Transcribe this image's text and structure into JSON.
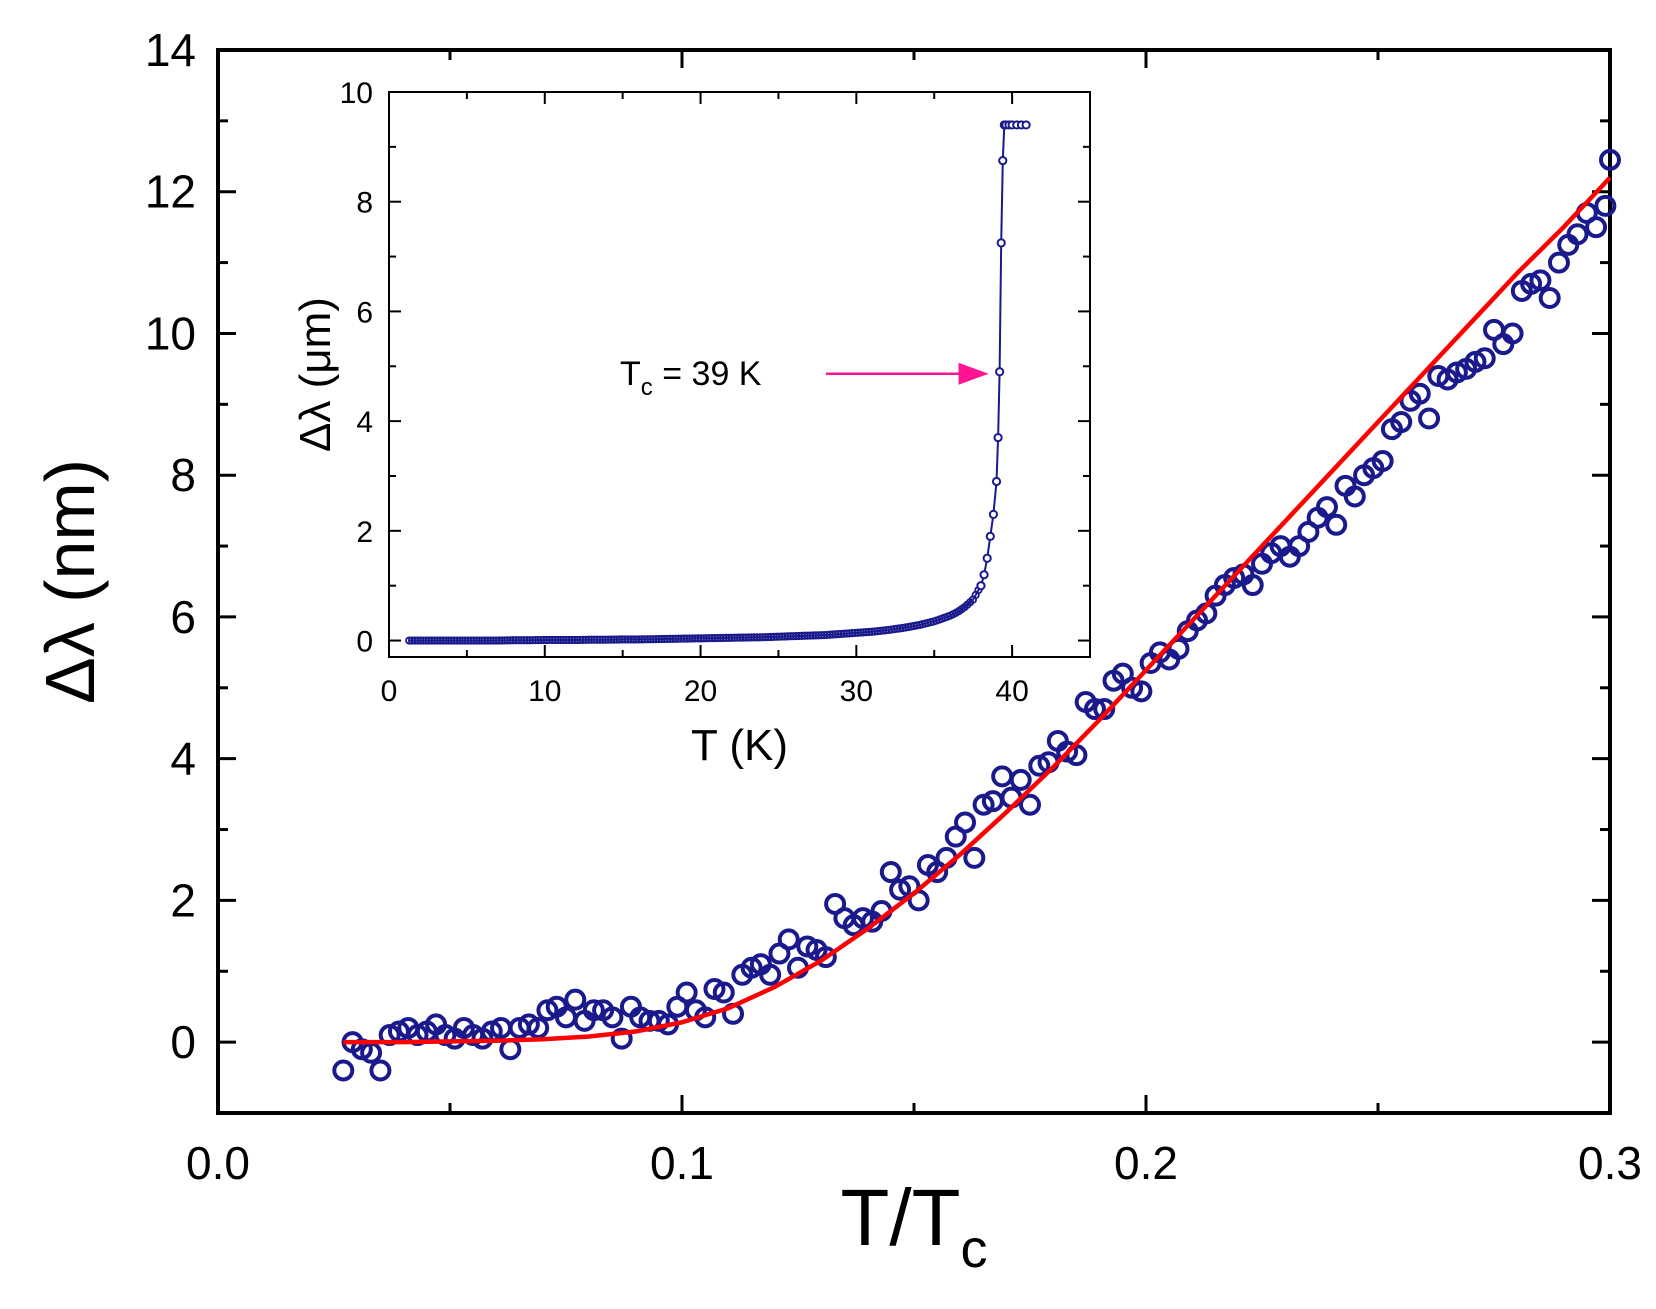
{
  "chart_data": [
    {
      "id": "main",
      "type": "scatter",
      "title": "",
      "xlabel": "T/T",
      "xlabel_sub": "c",
      "ylabel": "Δλ (nm)",
      "xlim": [
        0.0,
        0.3
      ],
      "ylim": [
        -1,
        14
      ],
      "xticks": [
        0.0,
        0.1,
        0.2,
        0.3
      ],
      "xtick_labels": [
        "0.0",
        "0.1",
        "0.2",
        "0.3"
      ],
      "xminor": [
        0.05,
        0.15,
        0.25
      ],
      "yticks": [
        0,
        2,
        4,
        6,
        8,
        10,
        12,
        14
      ],
      "ytick_labels": [
        "0",
        "2",
        "4",
        "6",
        "8",
        "10",
        "12",
        "14"
      ],
      "yminor": [
        1,
        3,
        5,
        7,
        9,
        11,
        13
      ],
      "series": [
        {
          "name": "data",
          "marker": "open-circle",
          "color": "#1a1a8c",
          "x": [
            0.027,
            0.029,
            0.031,
            0.033,
            0.035,
            0.037,
            0.039,
            0.041,
            0.043,
            0.045,
            0.047,
            0.049,
            0.051,
            0.053,
            0.055,
            0.057,
            0.059,
            0.061,
            0.063,
            0.065,
            0.067,
            0.069,
            0.071,
            0.073,
            0.075,
            0.077,
            0.079,
            0.081,
            0.083,
            0.085,
            0.087,
            0.089,
            0.091,
            0.093,
            0.095,
            0.097,
            0.099,
            0.101,
            0.103,
            0.105,
            0.107,
            0.109,
            0.111,
            0.113,
            0.115,
            0.117,
            0.119,
            0.121,
            0.123,
            0.125,
            0.127,
            0.129,
            0.131,
            0.133,
            0.135,
            0.137,
            0.139,
            0.141,
            0.143,
            0.145,
            0.147,
            0.149,
            0.151,
            0.153,
            0.155,
            0.157,
            0.159,
            0.161,
            0.163,
            0.165,
            0.167,
            0.169,
            0.171,
            0.173,
            0.175,
            0.177,
            0.179,
            0.181,
            0.183,
            0.185,
            0.187,
            0.189,
            0.191,
            0.193,
            0.195,
            0.197,
            0.199,
            0.201,
            0.203,
            0.205,
            0.207,
            0.209,
            0.211,
            0.213,
            0.215,
            0.217,
            0.219,
            0.221,
            0.223,
            0.225,
            0.227,
            0.229,
            0.231,
            0.233,
            0.235,
            0.237,
            0.239,
            0.241,
            0.243,
            0.245,
            0.247,
            0.249,
            0.251,
            0.253,
            0.255,
            0.257,
            0.259,
            0.261,
            0.263,
            0.265,
            0.267,
            0.269,
            0.271,
            0.273,
            0.275,
            0.277,
            0.279,
            0.281,
            0.283,
            0.285,
            0.287,
            0.289,
            0.291,
            0.293,
            0.295,
            0.297,
            0.299,
            0.3
          ],
          "y": [
            -0.4,
            0.0,
            -0.1,
            -0.15,
            -0.4,
            0.1,
            0.15,
            0.2,
            0.1,
            0.15,
            0.25,
            0.1,
            0.05,
            0.2,
            0.1,
            0.05,
            0.15,
            0.2,
            -0.1,
            0.2,
            0.25,
            0.2,
            0.45,
            0.5,
            0.35,
            0.6,
            0.3,
            0.45,
            0.45,
            0.35,
            0.05,
            0.5,
            0.35,
            0.3,
            0.3,
            0.25,
            0.5,
            0.7,
            0.45,
            0.35,
            0.75,
            0.7,
            0.4,
            0.95,
            1.05,
            1.1,
            0.95,
            1.25,
            1.45,
            1.05,
            1.35,
            1.3,
            1.2,
            1.95,
            1.75,
            1.65,
            1.75,
            1.7,
            1.85,
            2.4,
            2.15,
            2.2,
            2.0,
            2.5,
            2.4,
            2.6,
            2.9,
            3.1,
            2.6,
            3.35,
            3.4,
            3.75,
            3.45,
            3.7,
            3.35,
            3.9,
            3.95,
            4.25,
            4.1,
            4.05,
            4.8,
            4.7,
            4.7,
            5.1,
            5.2,
            5.0,
            4.95,
            5.35,
            5.5,
            5.4,
            5.55,
            5.8,
            5.95,
            6.05,
            6.3,
            6.45,
            6.55,
            6.6,
            6.45,
            6.75,
            6.9,
            7.0,
            6.85,
            7.0,
            7.2,
            7.4,
            7.55,
            7.3,
            7.85,
            7.7,
            8.0,
            8.1,
            8.2,
            8.65,
            8.75,
            9.05,
            9.15,
            8.8,
            9.4,
            9.35,
            9.45,
            9.5,
            9.6,
            9.65,
            10.05,
            9.85,
            10.0,
            10.6,
            10.7,
            10.75,
            10.5,
            11.0,
            11.25,
            11.4,
            11.7,
            11.5,
            11.8,
            12.45
          ]
        },
        {
          "name": "fit",
          "style": "line",
          "color": "#ff0000",
          "x": [
            0.027,
            0.04,
            0.05,
            0.06,
            0.07,
            0.08,
            0.09,
            0.1,
            0.11,
            0.12,
            0.13,
            0.14,
            0.15,
            0.16,
            0.17,
            0.18,
            0.19,
            0.2,
            0.21,
            0.22,
            0.23,
            0.24,
            0.25,
            0.26,
            0.27,
            0.28,
            0.29,
            0.3
          ],
          "y": [
            0.0,
            0.0,
            0.01,
            0.02,
            0.04,
            0.08,
            0.15,
            0.28,
            0.48,
            0.78,
            1.15,
            1.6,
            2.1,
            2.65,
            3.25,
            3.88,
            4.55,
            5.25,
            5.95,
            6.65,
            7.35,
            8.05,
            8.75,
            9.45,
            10.15,
            10.85,
            11.5,
            12.2
          ]
        }
      ]
    },
    {
      "id": "inset",
      "type": "line",
      "title": "",
      "xlabel": "T (K)",
      "ylabel": "Δλ (μm)",
      "xlim": [
        0,
        45
      ],
      "ylim": [
        -0.3,
        10
      ],
      "xticks": [
        0,
        10,
        20,
        30,
        40
      ],
      "xtick_labels": [
        "0",
        "10",
        "20",
        "30",
        "40"
      ],
      "xminor": [
        5,
        15,
        25,
        35,
        45
      ],
      "yticks": [
        0,
        2,
        4,
        6,
        8,
        10
      ],
      "ytick_labels": [
        "0",
        "2",
        "4",
        "6",
        "8",
        "10"
      ],
      "yminor": [
        1,
        3,
        5,
        7,
        9
      ],
      "annotation": {
        "text": "T",
        "sub": "c",
        "rest": " = 39 K",
        "x": 39,
        "y": 4.9
      },
      "arrow_color": "#ff1493",
      "series": [
        {
          "name": "Δλ(T)",
          "marker": "open-circle-with-line",
          "color": "#1a1a8c",
          "x": [
            1.3,
            2,
            3,
            4,
            5,
            6,
            7,
            8,
            9,
            10,
            11,
            12,
            13,
            14,
            15,
            16,
            17,
            18,
            19,
            20,
            21,
            22,
            23,
            24,
            25,
            26,
            27,
            28,
            29,
            30,
            31,
            32,
            33,
            34,
            35,
            35.5,
            36,
            36.5,
            37,
            37.5,
            38,
            38.2,
            38.4,
            38.6,
            38.8,
            39.0,
            39.1,
            39.2,
            39.3,
            39.4,
            39.5,
            39.6,
            39.8,
            40.0,
            40.3,
            40.6,
            40.9
          ],
          "y": [
            0,
            0,
            0,
            0,
            0,
            0,
            0,
            0.005,
            0.005,
            0.01,
            0.01,
            0.01,
            0.015,
            0.015,
            0.02,
            0.02,
            0.025,
            0.03,
            0.035,
            0.04,
            0.045,
            0.05,
            0.055,
            0.06,
            0.07,
            0.08,
            0.09,
            0.1,
            0.12,
            0.14,
            0.16,
            0.19,
            0.23,
            0.28,
            0.35,
            0.4,
            0.45,
            0.52,
            0.62,
            0.75,
            1.0,
            1.2,
            1.5,
            1.9,
            2.3,
            2.9,
            3.7,
            4.9,
            7.25,
            8.75,
            9.4,
            9.4,
            9.4,
            9.4,
            9.4,
            9.4,
            9.4
          ]
        }
      ]
    }
  ]
}
